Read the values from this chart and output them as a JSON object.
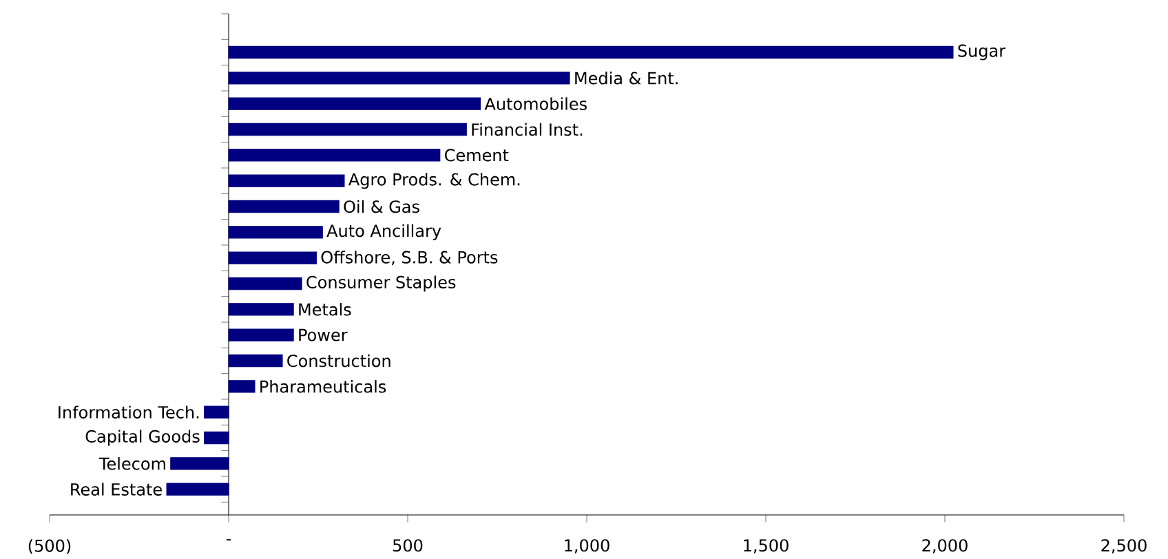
{
  "chart_data": {
    "type": "bar",
    "orientation": "horizontal",
    "color": "#000080",
    "categories": [
      "Sugar",
      "Media & Ent.",
      "Automobiles",
      "Financial Inst.",
      "Cement",
      "Agro Prods. & Chem.",
      "Oil & Gas",
      "Auto Ancillary",
      "Offshore, S.B. & Ports",
      "Consumer Staples",
      "Metals",
      "Power",
      "Construction",
      "Pharameuticals",
      "Information Tech.",
      "Capital Goods",
      "Telecom",
      "Real Estate"
    ],
    "values": [
      2023,
      952,
      703,
      664,
      590,
      323,
      308,
      262,
      245,
      204,
      181,
      181,
      150,
      73,
      -68,
      -68,
      -162,
      -173
    ],
    "xlim": [
      -500,
      2500
    ],
    "xticks": [
      {
        "value": -500,
        "label": "(500)"
      },
      {
        "value": 0,
        "label": "-"
      },
      {
        "value": 500,
        "label": "500"
      },
      {
        "value": 1000,
        "label": "1,000"
      },
      {
        "value": 1500,
        "label": "1,500"
      },
      {
        "value": 2000,
        "label": "2,000"
      },
      {
        "value": 2500,
        "label": "2,500"
      }
    ]
  }
}
